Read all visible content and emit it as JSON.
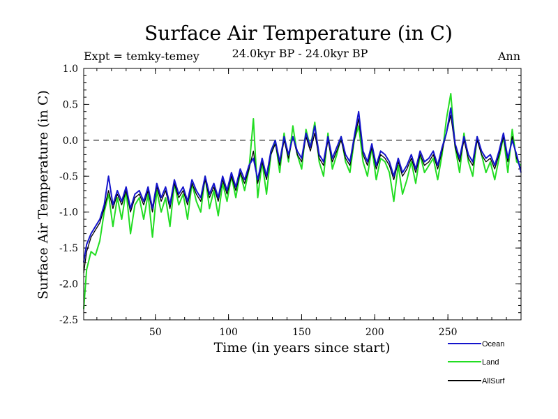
{
  "chart_data": {
    "type": "line",
    "title": "Surface Air Temperature (in C)",
    "subtitle": "24.0kyr BP - 24.0kyr BP",
    "expt_label": "Expt = temky-temey",
    "season_label": "Ann",
    "xlabel": "Time (in years since start)",
    "ylabel": "Surface Air Temperature (in C)",
    "xlim": [
      1,
      300
    ],
    "ylim": [
      -2.5,
      1.0
    ],
    "xticks": [
      50,
      100,
      150,
      200,
      250
    ],
    "xtick_labels": [
      "50",
      "100",
      "150",
      "200",
      "250"
    ],
    "yticks": [
      -2.5,
      -2.0,
      -1.5,
      -1.0,
      -0.5,
      0.0,
      0.5,
      1.0
    ],
    "ytick_labels": [
      "-2.5",
      "-2.0",
      "-1.5",
      "-1.0",
      "-0.5",
      "0.0",
      "0.5",
      "1.0"
    ],
    "reference_line": 0.0,
    "series": [
      {
        "name": "Land",
        "color": "#22dd22",
        "x": [
          1,
          3,
          6,
          9,
          12,
          15,
          18,
          21,
          24,
          27,
          30,
          33,
          36,
          39,
          42,
          45,
          48,
          51,
          54,
          57,
          60,
          63,
          66,
          69,
          72,
          75,
          78,
          81,
          84,
          87,
          90,
          93,
          96,
          99,
          102,
          105,
          108,
          111,
          114,
          117,
          120,
          123,
          126,
          129,
          132,
          135,
          138,
          141,
          144,
          147,
          150,
          153,
          156,
          159,
          162,
          165,
          168,
          171,
          174,
          177,
          180,
          183,
          186,
          189,
          192,
          195,
          198,
          201,
          204,
          207,
          210,
          213,
          216,
          219,
          222,
          225,
          228,
          231,
          234,
          237,
          240,
          243,
          246,
          249,
          252,
          255,
          258,
          261,
          264,
          267,
          270,
          273,
          276,
          279,
          282,
          285,
          288,
          291,
          294,
          297,
          300
        ],
        "values": [
          -2.35,
          -1.8,
          -1.55,
          -1.6,
          -1.4,
          -1.0,
          -0.75,
          -1.2,
          -0.8,
          -1.1,
          -0.7,
          -1.3,
          -0.9,
          -0.8,
          -1.1,
          -0.75,
          -1.35,
          -0.7,
          -1.0,
          -0.8,
          -1.2,
          -0.6,
          -0.9,
          -0.75,
          -1.1,
          -0.6,
          -0.85,
          -1.0,
          -0.5,
          -0.95,
          -0.7,
          -1.05,
          -0.6,
          -0.85,
          -0.5,
          -0.8,
          -0.45,
          -0.7,
          -0.4,
          0.3,
          -0.8,
          -0.3,
          -0.75,
          -0.2,
          0.0,
          -0.45,
          0.1,
          -0.3,
          0.2,
          -0.2,
          -0.4,
          0.15,
          -0.1,
          0.25,
          -0.3,
          -0.5,
          0.1,
          -0.4,
          -0.2,
          0.05,
          -0.3,
          -0.45,
          0.0,
          0.2,
          -0.3,
          -0.5,
          -0.1,
          -0.55,
          -0.25,
          -0.3,
          -0.45,
          -0.85,
          -0.35,
          -0.75,
          -0.55,
          -0.3,
          -0.6,
          -0.2,
          -0.45,
          -0.35,
          -0.25,
          -0.55,
          -0.2,
          0.3,
          0.65,
          -0.1,
          -0.45,
          0.1,
          -0.3,
          -0.5,
          0.05,
          -0.2,
          -0.45,
          -0.3,
          -0.55,
          -0.25,
          0.05,
          -0.45,
          0.15,
          -0.3,
          -0.35
        ]
      },
      {
        "name": "AllSurf",
        "color": "#000000",
        "x": [
          1,
          3,
          6,
          9,
          12,
          15,
          18,
          21,
          24,
          27,
          30,
          33,
          36,
          39,
          42,
          45,
          48,
          51,
          54,
          57,
          60,
          63,
          66,
          69,
          72,
          75,
          78,
          81,
          84,
          87,
          90,
          93,
          96,
          99,
          102,
          105,
          108,
          111,
          114,
          117,
          120,
          123,
          126,
          129,
          132,
          135,
          138,
          141,
          144,
          147,
          150,
          153,
          156,
          159,
          162,
          165,
          168,
          171,
          174,
          177,
          180,
          183,
          186,
          189,
          192,
          195,
          198,
          201,
          204,
          207,
          210,
          213,
          216,
          219,
          222,
          225,
          228,
          231,
          234,
          237,
          240,
          243,
          246,
          249,
          252,
          255,
          258,
          261,
          264,
          267,
          270,
          273,
          276,
          279,
          282,
          285,
          288,
          291,
          294,
          297,
          300
        ],
        "values": [
          -1.85,
          -1.55,
          -1.35,
          -1.25,
          -1.15,
          -0.95,
          -0.7,
          -0.95,
          -0.75,
          -0.9,
          -0.7,
          -1.0,
          -0.8,
          -0.75,
          -0.9,
          -0.7,
          -1.0,
          -0.65,
          -0.85,
          -0.7,
          -0.95,
          -0.6,
          -0.8,
          -0.7,
          -0.9,
          -0.6,
          -0.75,
          -0.85,
          -0.55,
          -0.8,
          -0.65,
          -0.85,
          -0.55,
          -0.75,
          -0.5,
          -0.7,
          -0.45,
          -0.6,
          -0.4,
          -0.15,
          -0.6,
          -0.3,
          -0.55,
          -0.2,
          -0.05,
          -0.35,
          0.0,
          -0.25,
          0.05,
          -0.2,
          -0.3,
          0.05,
          -0.15,
          0.1,
          -0.25,
          -0.35,
          0.0,
          -0.3,
          -0.15,
          0.0,
          -0.25,
          -0.35,
          0.0,
          0.3,
          -0.2,
          -0.35,
          -0.1,
          -0.4,
          -0.2,
          -0.25,
          -0.35,
          -0.55,
          -0.3,
          -0.5,
          -0.4,
          -0.25,
          -0.45,
          -0.2,
          -0.35,
          -0.3,
          -0.2,
          -0.4,
          -0.15,
          0.1,
          0.35,
          -0.1,
          -0.3,
          0.0,
          -0.25,
          -0.35,
          0.0,
          -0.2,
          -0.3,
          -0.25,
          -0.4,
          -0.2,
          0.05,
          -0.3,
          0.05,
          -0.25,
          -0.4
        ]
      },
      {
        "name": "Ocean",
        "color": "#1414cc",
        "x": [
          1,
          3,
          6,
          9,
          12,
          15,
          18,
          21,
          24,
          27,
          30,
          33,
          36,
          39,
          42,
          45,
          48,
          51,
          54,
          57,
          60,
          63,
          66,
          69,
          72,
          75,
          78,
          81,
          84,
          87,
          90,
          93,
          96,
          99,
          102,
          105,
          108,
          111,
          114,
          117,
          120,
          123,
          126,
          129,
          132,
          135,
          138,
          141,
          144,
          147,
          150,
          153,
          156,
          159,
          162,
          165,
          168,
          171,
          174,
          177,
          180,
          183,
          186,
          189,
          192,
          195,
          198,
          201,
          204,
          207,
          210,
          213,
          216,
          219,
          222,
          225,
          228,
          231,
          234,
          237,
          240,
          243,
          246,
          249,
          252,
          255,
          258,
          261,
          264,
          267,
          270,
          273,
          276,
          279,
          282,
          285,
          288,
          291,
          294,
          297,
          300
        ],
        "values": [
          -1.7,
          -1.45,
          -1.3,
          -1.2,
          -1.1,
          -0.9,
          -0.5,
          -0.9,
          -0.7,
          -0.85,
          -0.65,
          -0.95,
          -0.75,
          -0.7,
          -0.85,
          -0.65,
          -0.95,
          -0.6,
          -0.8,
          -0.65,
          -0.9,
          -0.55,
          -0.75,
          -0.65,
          -0.85,
          -0.55,
          -0.7,
          -0.8,
          -0.5,
          -0.75,
          -0.6,
          -0.8,
          -0.5,
          -0.7,
          -0.45,
          -0.65,
          -0.4,
          -0.55,
          -0.35,
          -0.25,
          -0.55,
          -0.25,
          -0.5,
          -0.15,
          0.0,
          -0.3,
          0.05,
          -0.2,
          0.05,
          -0.15,
          -0.25,
          0.1,
          -0.1,
          0.2,
          -0.2,
          -0.3,
          0.05,
          -0.25,
          -0.1,
          0.05,
          -0.2,
          -0.3,
          0.05,
          0.4,
          -0.15,
          -0.3,
          -0.05,
          -0.35,
          -0.15,
          -0.2,
          -0.3,
          -0.5,
          -0.25,
          -0.45,
          -0.35,
          -0.2,
          -0.4,
          -0.15,
          -0.3,
          -0.25,
          -0.15,
          -0.35,
          -0.1,
          0.1,
          0.45,
          -0.05,
          -0.25,
          0.05,
          -0.2,
          -0.3,
          0.05,
          -0.15,
          -0.25,
          -0.2,
          -0.35,
          -0.15,
          0.1,
          -0.25,
          0.0,
          -0.2,
          -0.45
        ]
      }
    ],
    "legend": [
      {
        "name": "Ocean",
        "color": "#1414cc"
      },
      {
        "name": "Land",
        "color": "#22dd22"
      },
      {
        "name": "AllSurf",
        "color": "#000000"
      }
    ]
  }
}
